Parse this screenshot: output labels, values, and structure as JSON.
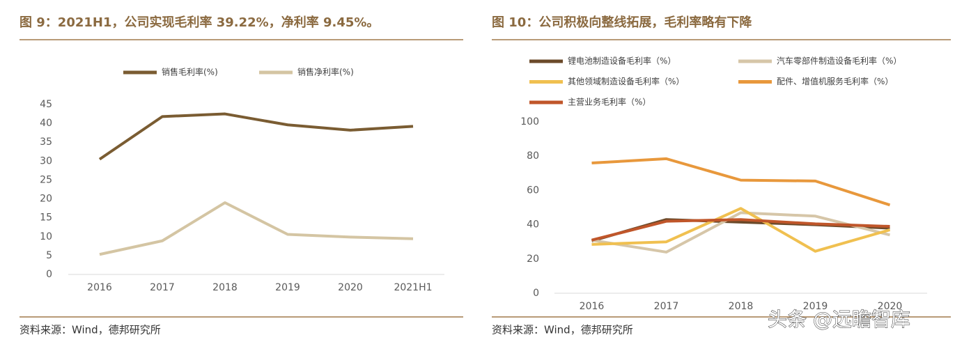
{
  "chart_data": [
    {
      "type": "line",
      "title": "图 9：2021H1，公司实现毛利率 39.22%，净利率 9.45%。",
      "categories": [
        "2016",
        "2017",
        "2018",
        "2019",
        "2020",
        "2021H1"
      ],
      "series": [
        {
          "name": "销售毛利率(%)",
          "color": "#7a5c32",
          "values": [
            30.5,
            41.8,
            42.5,
            39.6,
            38.2,
            39.22
          ]
        },
        {
          "name": "销售净利率(%)",
          "color": "#d4c5a3",
          "values": [
            5.3,
            8.9,
            19.0,
            10.6,
            9.9,
            9.45
          ]
        }
      ],
      "ylim": [
        0,
        45
      ],
      "yticks": [
        0,
        5,
        10,
        15,
        20,
        25,
        30,
        35,
        40,
        45
      ],
      "source": "资料来源：Wind，德邦研究所"
    },
    {
      "type": "line",
      "title": "图 10：公司积极向整线拓展，毛利率略有下降",
      "categories": [
        "2016",
        "2017",
        "2018",
        "2019",
        "2020"
      ],
      "series": [
        {
          "name": "锂电池制造设备毛利率（%）",
          "color": "#6b4a2a",
          "values": [
            30.5,
            43,
            41.5,
            40,
            38
          ]
        },
        {
          "name": "汽车零部件制造设备毛利率（%）",
          "color": "#d6c6a8",
          "values": [
            31,
            24,
            47,
            45,
            34
          ]
        },
        {
          "name": "其他领域制造设备毛利率（%）",
          "color": "#f0c050",
          "values": [
            28.5,
            30,
            49.5,
            24.5,
            37
          ]
        },
        {
          "name": "配件、增值机服务毛利率（%）",
          "color": "#e8983c",
          "values": [
            76,
            78.5,
            66,
            65.5,
            51.5
          ]
        },
        {
          "name": "主营业务毛利率（%）",
          "color": "#c0562a",
          "values": [
            31,
            42,
            43,
            40.5,
            39
          ]
        }
      ],
      "ylim": [
        0,
        100
      ],
      "yticks": [
        0,
        20,
        40,
        60,
        80,
        100
      ],
      "source": "资料来源：Wind，德邦研究所"
    }
  ],
  "watermark": "头条 @远瞻智库"
}
